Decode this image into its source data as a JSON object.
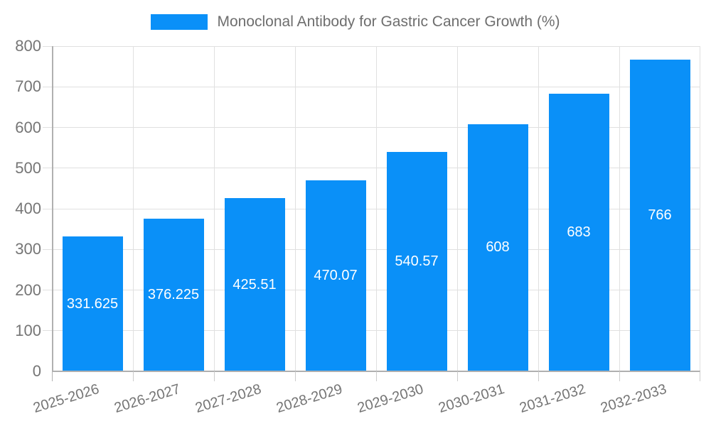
{
  "legend": {
    "label": "Monoclonal Antibody for Gastric Cancer Growth (%)"
  },
  "colors": {
    "bar": "#0a90f8",
    "value_label_text": "#ffffff",
    "axis_tick_text": "#757575",
    "legend_text": "#6e6e6e",
    "grid_line": "#e0e0e0",
    "axis_line": "#b0b0b0",
    "tick_mark": "#cccccc",
    "background": "#ffffff"
  },
  "chart_data": {
    "type": "bar",
    "title": "",
    "legend_label": "Monoclonal Antibody for Gastric Cancer Growth (%)",
    "legend_position": "top",
    "categories": [
      "2025-2026",
      "2026-2027",
      "2027-2028",
      "2028-2029",
      "2029-2030",
      "2030-2031",
      "2031-2032",
      "2032-2033"
    ],
    "values": [
      331.625,
      376.225,
      425.51,
      470.07,
      540.57,
      608,
      683,
      766
    ],
    "value_labels": [
      "331.625",
      "376.225",
      "425.51",
      "470.07",
      "540.57",
      "608",
      "683",
      "766"
    ],
    "xlabel": "",
    "ylabel": "",
    "ylim": [
      0,
      800
    ],
    "yticks": [
      "0",
      "100",
      "200",
      "300",
      "400",
      "500",
      "600",
      "700",
      "800"
    ],
    "grid": true,
    "x_label_rotation_deg": -17
  }
}
